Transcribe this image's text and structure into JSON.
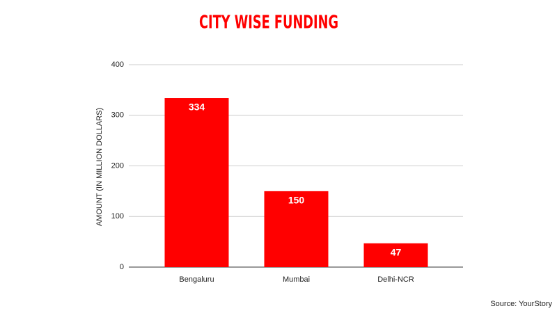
{
  "chart_data": {
    "type": "bar",
    "title": "CITY WISE FUNDING",
    "y_label": "AMOUNT (IN MILLION DOLLARS)",
    "categories": [
      "Bengaluru",
      "Mumbai",
      "Delhi-NCR"
    ],
    "values": [
      334,
      150,
      47
    ],
    "color": "#ff0000",
    "ylim": [
      0,
      400
    ],
    "yticks": [
      0,
      100,
      200,
      300,
      400
    ],
    "grid": true,
    "source": "Source: YourStory"
  }
}
